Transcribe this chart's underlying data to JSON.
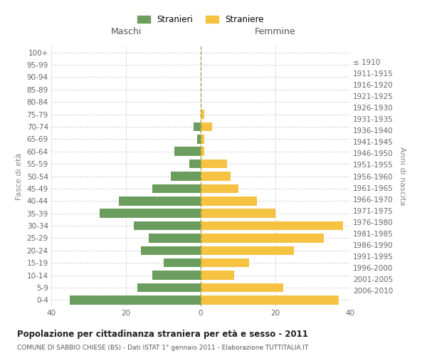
{
  "age_groups": [
    "0-4",
    "5-9",
    "10-14",
    "15-19",
    "20-24",
    "25-29",
    "30-34",
    "35-39",
    "40-44",
    "45-49",
    "50-54",
    "55-59",
    "60-64",
    "65-69",
    "70-74",
    "75-79",
    "80-84",
    "85-89",
    "90-94",
    "95-99",
    "100+"
  ],
  "birth_years": [
    "2006-2010",
    "2001-2005",
    "1996-2000",
    "1991-1995",
    "1986-1990",
    "1981-1985",
    "1976-1980",
    "1971-1975",
    "1966-1970",
    "1961-1965",
    "1956-1960",
    "1951-1955",
    "1946-1950",
    "1941-1945",
    "1936-1940",
    "1931-1935",
    "1926-1930",
    "1921-1925",
    "1916-1920",
    "1911-1915",
    "≤ 1910"
  ],
  "maschi": [
    35,
    17,
    13,
    10,
    16,
    14,
    18,
    27,
    22,
    13,
    8,
    3,
    7,
    1,
    2,
    0,
    0,
    0,
    0,
    0,
    0
  ],
  "femmine": [
    37,
    22,
    9,
    13,
    25,
    33,
    38,
    20,
    15,
    10,
    8,
    7,
    1,
    1,
    3,
    1,
    0,
    0,
    0,
    0,
    0
  ],
  "color_maschi": "#6b9e5e",
  "color_femmine": "#f5c242",
  "title": "Popolazione per cittadinanza straniera per età e sesso - 2011",
  "subtitle": "COMUNE DI SABBIO CHIESE (BS) - Dati ISTAT 1° gennaio 2011 - Elaborazione TUTTITALIA.IT",
  "ylabel_left": "Fasce di età",
  "ylabel_right": "Anni di nascita",
  "xlabel_maschi": "Maschi",
  "xlabel_femmine": "Femmine",
  "legend_maschi": "Stranieri",
  "legend_femmine": "Straniere",
  "xlim": 40,
  "background_color": "#ffffff",
  "grid_color": "#cccccc"
}
